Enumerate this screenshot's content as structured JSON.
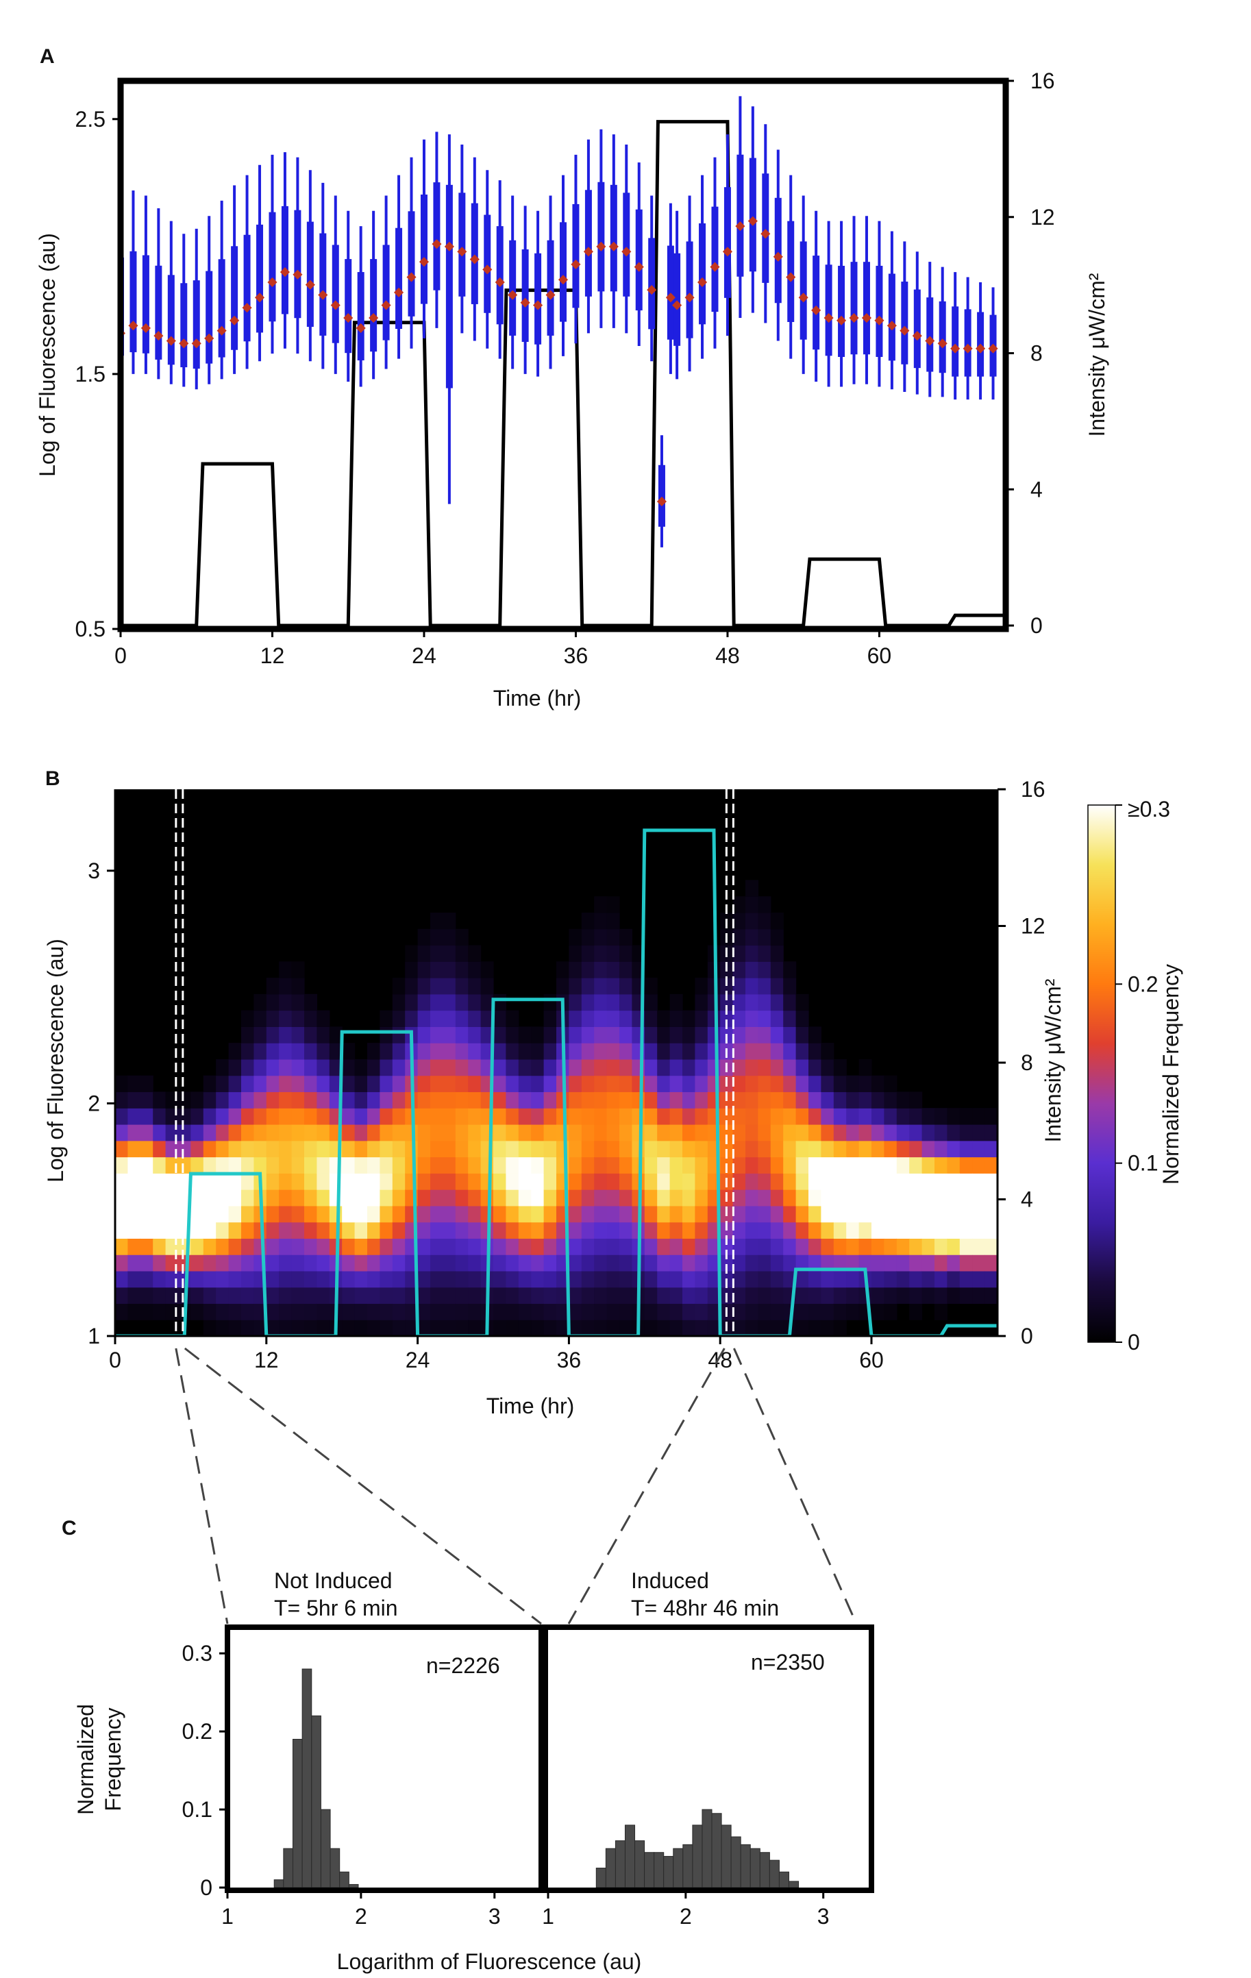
{
  "panels": {
    "a": {
      "letter": "A"
    },
    "b": {
      "letter": "B"
    },
    "c": {
      "letter": "C"
    }
  },
  "colorbar": {
    "label": "Normalized Frequency",
    "tick_labels": [
      "≥0.3",
      "0.2",
      "0.1",
      "0"
    ],
    "tick_values": [
      0.3,
      0.2,
      0.1,
      0
    ],
    "stops": [
      "#000000",
      "#1a0a3d",
      "#3a1ca0",
      "#5a2fd0",
      "#9a3aa8",
      "#e0402f",
      "#ff7a10",
      "#ffb020",
      "#f6e25a",
      "#ffffff"
    ]
  },
  "colors": {
    "box_blue": "#1f1fe0",
    "median_red": "#c2351f",
    "light_line_a": "#000000",
    "light_line_b": "#22c8c8",
    "hist_bar": "#4a4a4a",
    "dashed_zoom": "#444444"
  },
  "chart_data": [
    {
      "id": "panel-a",
      "type": "box+line",
      "xlabel": "Time (hr)",
      "ylabel": "Log of Fluorescence (au)",
      "ylabel_right": "Intensity μW/cm²",
      "xlim": [
        0,
        70
      ],
      "ylim": [
        0.5,
        2.65
      ],
      "ylim_right": [
        0,
        16
      ],
      "x_ticks": [
        0,
        12,
        24,
        36,
        48,
        60
      ],
      "x_tick_labels": [
        "0",
        "12",
        "24",
        "36",
        "48",
        "60"
      ],
      "y_ticks": [
        0.5,
        1.5,
        2.5
      ],
      "y_tick_labels": [
        "0.5",
        "1.5",
        "2.5"
      ],
      "y_right_ticks": [
        0,
        4,
        8,
        12,
        16
      ],
      "y_right_tick_labels": [
        "0",
        "4",
        "8",
        "12",
        "16"
      ],
      "median_series": {
        "name": "median log fluorescence",
        "x": [
          0,
          1,
          2,
          3,
          4,
          5,
          6,
          7,
          8,
          9,
          10,
          11,
          12,
          13,
          14,
          15,
          16,
          17,
          18,
          19,
          20,
          21,
          22,
          23,
          24,
          25,
          26,
          27,
          28,
          29,
          30,
          31,
          32,
          33,
          34,
          35,
          36,
          37,
          38,
          39,
          40,
          41,
          42,
          42.8,
          43.5,
          44,
          45,
          46,
          47,
          48,
          49,
          50,
          51,
          52,
          53,
          54,
          55,
          56,
          57,
          58,
          59,
          60,
          61,
          62,
          63,
          64,
          65,
          66,
          67,
          68,
          69
        ],
        "y": [
          1.66,
          1.69,
          1.68,
          1.65,
          1.63,
          1.62,
          1.62,
          1.64,
          1.67,
          1.71,
          1.76,
          1.8,
          1.86,
          1.9,
          1.89,
          1.85,
          1.81,
          1.77,
          1.72,
          1.68,
          1.72,
          1.77,
          1.82,
          1.88,
          1.94,
          2.01,
          2.0,
          1.98,
          1.95,
          1.91,
          1.86,
          1.81,
          1.78,
          1.77,
          1.81,
          1.87,
          1.93,
          1.98,
          2.0,
          2.0,
          1.98,
          1.92,
          1.83,
          1.0,
          1.8,
          1.77,
          1.8,
          1.86,
          1.92,
          1.98,
          2.08,
          2.1,
          2.05,
          1.96,
          1.88,
          1.8,
          1.75,
          1.72,
          1.71,
          1.72,
          1.72,
          1.71,
          1.69,
          1.67,
          1.65,
          1.63,
          1.62,
          1.6,
          1.6,
          1.6,
          1.6
        ]
      },
      "box_whisker_low": [
        1.5,
        1.5,
        1.5,
        1.48,
        1.46,
        1.45,
        1.44,
        1.46,
        1.48,
        1.5,
        1.52,
        1.55,
        1.58,
        1.6,
        1.58,
        1.55,
        1.52,
        1.5,
        1.47,
        1.45,
        1.48,
        1.52,
        1.56,
        1.6,
        1.64,
        1.68,
        0.99,
        1.66,
        1.63,
        1.6,
        1.56,
        1.52,
        1.5,
        1.49,
        1.52,
        1.57,
        1.62,
        1.66,
        1.68,
        1.68,
        1.66,
        1.61,
        1.55,
        0.82,
        1.5,
        1.48,
        1.51,
        1.56,
        1.6,
        1.65,
        1.72,
        1.74,
        1.7,
        1.63,
        1.56,
        1.5,
        1.47,
        1.45,
        1.45,
        1.46,
        1.46,
        1.45,
        1.44,
        1.43,
        1.42,
        1.41,
        1.41,
        1.4,
        1.4,
        1.4,
        1.4
      ],
      "box_whisker_high": [
        2.2,
        2.22,
        2.2,
        2.15,
        2.1,
        2.05,
        2.07,
        2.12,
        2.18,
        2.24,
        2.28,
        2.32,
        2.36,
        2.37,
        2.35,
        2.3,
        2.25,
        2.2,
        2.14,
        2.08,
        2.14,
        2.2,
        2.28,
        2.35,
        2.42,
        2.45,
        2.44,
        2.4,
        2.35,
        2.3,
        2.26,
        2.2,
        2.16,
        2.14,
        2.2,
        2.28,
        2.36,
        2.42,
        2.46,
        2.44,
        2.4,
        2.33,
        2.2,
        1.26,
        2.17,
        2.14,
        2.2,
        2.28,
        2.35,
        2.44,
        2.59,
        2.55,
        2.48,
        2.38,
        2.28,
        2.2,
        2.14,
        2.1,
        2.1,
        2.12,
        2.12,
        2.1,
        2.06,
        2.02,
        1.98,
        1.94,
        1.92,
        1.9,
        1.88,
        1.86,
        1.84
      ],
      "light_profile": {
        "name": "light intensity",
        "x": [
          0,
          6,
          6.5,
          12,
          12.5,
          18,
          18.5,
          24,
          24.5,
          30,
          30.5,
          36,
          36.5,
          42,
          42.5,
          48,
          48.5,
          54,
          54.5,
          60,
          60.5,
          65.5,
          66,
          70
        ],
        "y": [
          0,
          0,
          4.75,
          4.75,
          0,
          0,
          8.9,
          8.9,
          0,
          0,
          9.85,
          9.85,
          0,
          0,
          14.8,
          14.8,
          0,
          0,
          1.95,
          1.95,
          0,
          0,
          0.3,
          0.3
        ]
      }
    },
    {
      "id": "panel-b",
      "type": "heatmap+line",
      "xlabel": "Time (hr)",
      "ylabel": "Log of Fluorescence (au)",
      "ylabel_right": "Intensity μW/cm²",
      "xlim": [
        0,
        70
      ],
      "ylim": [
        1,
        3.35
      ],
      "ylim_right": [
        0,
        16
      ],
      "x_ticks": [
        0,
        12,
        24,
        36,
        48,
        60
      ],
      "x_tick_labels": [
        "0",
        "12",
        "24",
        "36",
        "48",
        "60"
      ],
      "y_ticks": [
        1,
        2,
        3
      ],
      "y_tick_labels": [
        "1",
        "2",
        "3"
      ],
      "y_right_ticks": [
        0,
        4,
        8,
        12,
        16
      ],
      "y_right_tick_labels": [
        "0",
        "4",
        "8",
        "12",
        "16"
      ],
      "heatmap": {
        "x_bin_hr": 1,
        "y_bin_log": 0.07,
        "time_hr_centers": [
          0.5,
          1.5,
          2.5,
          3.5,
          4.5,
          5.5,
          6.5,
          7.5,
          8.5,
          9.5,
          10.5,
          11.5,
          12.5,
          13.5,
          14.5,
          15.5,
          16.5,
          17.5,
          18.5,
          19.5,
          20.5,
          21.5,
          22.5,
          23.5,
          24.5,
          25.5,
          26.5,
          27.5,
          28.5,
          29.5,
          30.5,
          31.5,
          32.5,
          33.5,
          34.5,
          35.5,
          36.5,
          37.5,
          38.5,
          39.5,
          40.5,
          41.5,
          42.5,
          43.5,
          44.5,
          45.5,
          46.5,
          47.5,
          48.5,
          49.5,
          50.5,
          51.5,
          52.5,
          53.5,
          54.5,
          55.5,
          56.5,
          57.5,
          58.5,
          59.5,
          60.5,
          61.5,
          62.5,
          63.5,
          64.5,
          65.5,
          66.5,
          67.5,
          68.5,
          69.5
        ],
        "median_log": [
          1.58,
          1.6,
          1.6,
          1.57,
          1.55,
          1.55,
          1.56,
          1.58,
          1.6,
          1.63,
          1.67,
          1.7,
          1.74,
          1.77,
          1.76,
          1.73,
          1.7,
          1.66,
          1.62,
          1.6,
          1.63,
          1.68,
          1.72,
          1.78,
          1.84,
          1.88,
          1.88,
          1.85,
          1.82,
          1.78,
          1.74,
          1.7,
          1.67,
          1.66,
          1.7,
          1.76,
          1.82,
          1.87,
          1.9,
          1.9,
          1.87,
          1.82,
          1.75,
          1.68,
          1.7,
          1.66,
          1.7,
          1.76,
          1.82,
          1.88,
          1.93,
          1.92,
          1.86,
          1.79,
          1.72,
          1.67,
          1.63,
          1.61,
          1.6,
          1.61,
          1.6,
          1.59,
          1.58,
          1.57,
          1.56,
          1.55,
          1.55,
          1.54,
          1.54,
          1.54
        ],
        "spread_log": [
          0.18,
          0.18,
          0.18,
          0.17,
          0.16,
          0.16,
          0.17,
          0.19,
          0.21,
          0.23,
          0.26,
          0.28,
          0.3,
          0.31,
          0.3,
          0.28,
          0.26,
          0.24,
          0.22,
          0.21,
          0.23,
          0.26,
          0.29,
          0.32,
          0.35,
          0.36,
          0.36,
          0.34,
          0.32,
          0.3,
          0.27,
          0.25,
          0.24,
          0.24,
          0.27,
          0.31,
          0.34,
          0.36,
          0.37,
          0.36,
          0.34,
          0.31,
          0.28,
          0.26,
          0.28,
          0.28,
          0.31,
          0.34,
          0.37,
          0.39,
          0.4,
          0.38,
          0.35,
          0.31,
          0.27,
          0.24,
          0.22,
          0.2,
          0.19,
          0.19,
          0.18,
          0.17,
          0.16,
          0.16,
          0.15,
          0.15,
          0.14,
          0.14,
          0.14,
          0.14
        ],
        "color_max": 0.3
      },
      "light_profile": {
        "name": "light intensity",
        "x": [
          0,
          5.5,
          6,
          11.5,
          12,
          17.5,
          18,
          23.5,
          24,
          29.5,
          30,
          35.5,
          36,
          41.5,
          42,
          47.5,
          48,
          53.5,
          54,
          59.5,
          60,
          65.5,
          66,
          70
        ],
        "y": [
          0,
          0,
          4.75,
          4.75,
          0,
          0,
          8.9,
          8.9,
          0,
          0,
          9.85,
          9.85,
          0,
          0,
          14.8,
          14.8,
          0,
          0,
          1.95,
          1.95,
          0,
          0,
          0.3,
          0.3
        ]
      },
      "zoom_markers_hr": [
        5.1,
        48.77
      ]
    },
    {
      "id": "panel-c-left",
      "type": "bar",
      "title": "Not Induced",
      "subtitle": "T= 5hr 6 min",
      "n_label": "n=2226",
      "xlim": [
        1,
        3.35
      ],
      "ylim": [
        0,
        0.33
      ],
      "x_ticks": [
        1,
        2,
        3
      ],
      "x_tick_labels": [
        "1",
        "2",
        "3"
      ],
      "y_ticks": [
        0,
        0.1,
        0.2,
        0.3
      ],
      "y_tick_labels": [
        "0",
        "0.1",
        "0.2",
        "0.3"
      ],
      "bin_width": 0.07,
      "bin_starts": [
        1.35,
        1.42,
        1.49,
        1.56,
        1.63,
        1.7,
        1.77,
        1.84,
        1.91
      ],
      "values": [
        0.01,
        0.05,
        0.19,
        0.28,
        0.22,
        0.1,
        0.05,
        0.02,
        0.004
      ]
    },
    {
      "id": "panel-c-right",
      "type": "bar",
      "title": "Induced",
      "subtitle": "T= 48hr 46 min",
      "n_label": "n=2350",
      "xlim": [
        1,
        3.35
      ],
      "ylim": [
        0,
        0.33
      ],
      "x_ticks": [
        1,
        2,
        3
      ],
      "x_tick_labels": [
        "1",
        "2",
        "3"
      ],
      "bin_width": 0.07,
      "bin_starts": [
        1.35,
        1.42,
        1.49,
        1.56,
        1.63,
        1.7,
        1.77,
        1.84,
        1.91,
        1.98,
        2.05,
        2.12,
        2.19,
        2.26,
        2.33,
        2.4,
        2.47,
        2.54,
        2.61,
        2.68,
        2.75
      ],
      "values": [
        0.025,
        0.05,
        0.06,
        0.08,
        0.06,
        0.045,
        0.045,
        0.04,
        0.05,
        0.055,
        0.08,
        0.1,
        0.095,
        0.08,
        0.065,
        0.055,
        0.05,
        0.045,
        0.035,
        0.02,
        0.008
      ]
    }
  ],
  "panel_c_shared": {
    "ylabel_line1": "Normalized",
    "ylabel_line2": "Frequency",
    "xlabel": "Logarithm of Fluorescence (au)"
  }
}
